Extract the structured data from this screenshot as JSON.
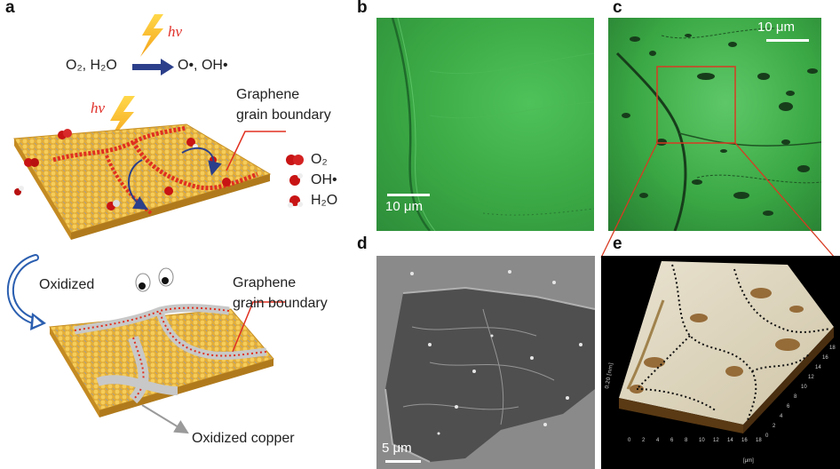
{
  "panels": {
    "a": {
      "letter": "a",
      "hv_top": "hν",
      "hv_mid": "hν",
      "reaction_left": "O₂, H₂O",
      "reaction_right": "O•, OH•",
      "grain_boundary_top": [
        "Graphene",
        "grain boundary"
      ],
      "legend": [
        "O₂",
        "OH•",
        "H₂O"
      ],
      "oxidized": "Oxidized",
      "grain_boundary_bottom": [
        "Graphene",
        "grain boundary"
      ],
      "oxidized_copper": "Oxidized copper"
    },
    "b": {
      "letter": "b",
      "scale": "10 μm"
    },
    "c": {
      "letter": "c",
      "scale": "10 μm"
    },
    "d": {
      "letter": "d",
      "scale": "5 μm"
    },
    "e": {
      "letter": "e",
      "axis_z": "0.20 [nm]",
      "axis_x_unit": "[μm]",
      "ticks_x": [
        "0",
        "2",
        "4",
        "6",
        "8",
        "10",
        "12",
        "14",
        "16",
        "18"
      ],
      "ticks_y": [
        "0",
        "2",
        "4",
        "6",
        "8",
        "10",
        "12",
        "14",
        "16",
        "18"
      ]
    }
  },
  "colors": {
    "hv_red": "#e0302a",
    "arrow_blue": "#2b3f8a",
    "copper_gold": "#e8b13a",
    "graphene_grey": "#b9b9b9",
    "grain_red": "#e03020",
    "micro_green": "#3fae4a",
    "inset_red": "#d83a22"
  }
}
